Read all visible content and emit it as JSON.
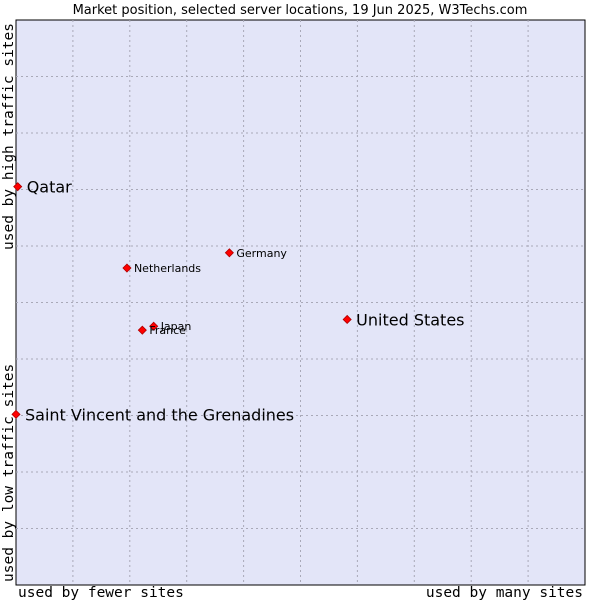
{
  "chart_data": {
    "type": "scatter",
    "title": "Market position, selected server locations, 19 Jun 2025, W3Techs.com",
    "xlabel_left": "used by fewer sites",
    "xlabel_right": "used by many sites",
    "ylabel_bottom": "used by low traffic sites",
    "ylabel_top": "used by high traffic sites",
    "xlim": [
      0,
      100
    ],
    "ylim": [
      0,
      100
    ],
    "grid": true,
    "plot_background": "#e3e5f8",
    "grid_color": "#a9a9b8",
    "point_color": "#ff0000",
    "points": [
      {
        "name": "Qatar",
        "x": 0.3,
        "y": 70.5,
        "emphasis": true
      },
      {
        "name": "Germany",
        "x": 37.5,
        "y": 58.8,
        "emphasis": false
      },
      {
        "name": "Netherlands",
        "x": 19.5,
        "y": 56.1,
        "emphasis": false
      },
      {
        "name": "United States",
        "x": 58.2,
        "y": 47.0,
        "emphasis": true
      },
      {
        "name": "Japan",
        "x": 24.2,
        "y": 45.8,
        "emphasis": false
      },
      {
        "name": "France",
        "x": 22.2,
        "y": 45.1,
        "emphasis": false
      },
      {
        "name": "Saint Vincent and the Grenadines",
        "x": 0.0,
        "y": 30.2,
        "emphasis": true
      }
    ]
  }
}
